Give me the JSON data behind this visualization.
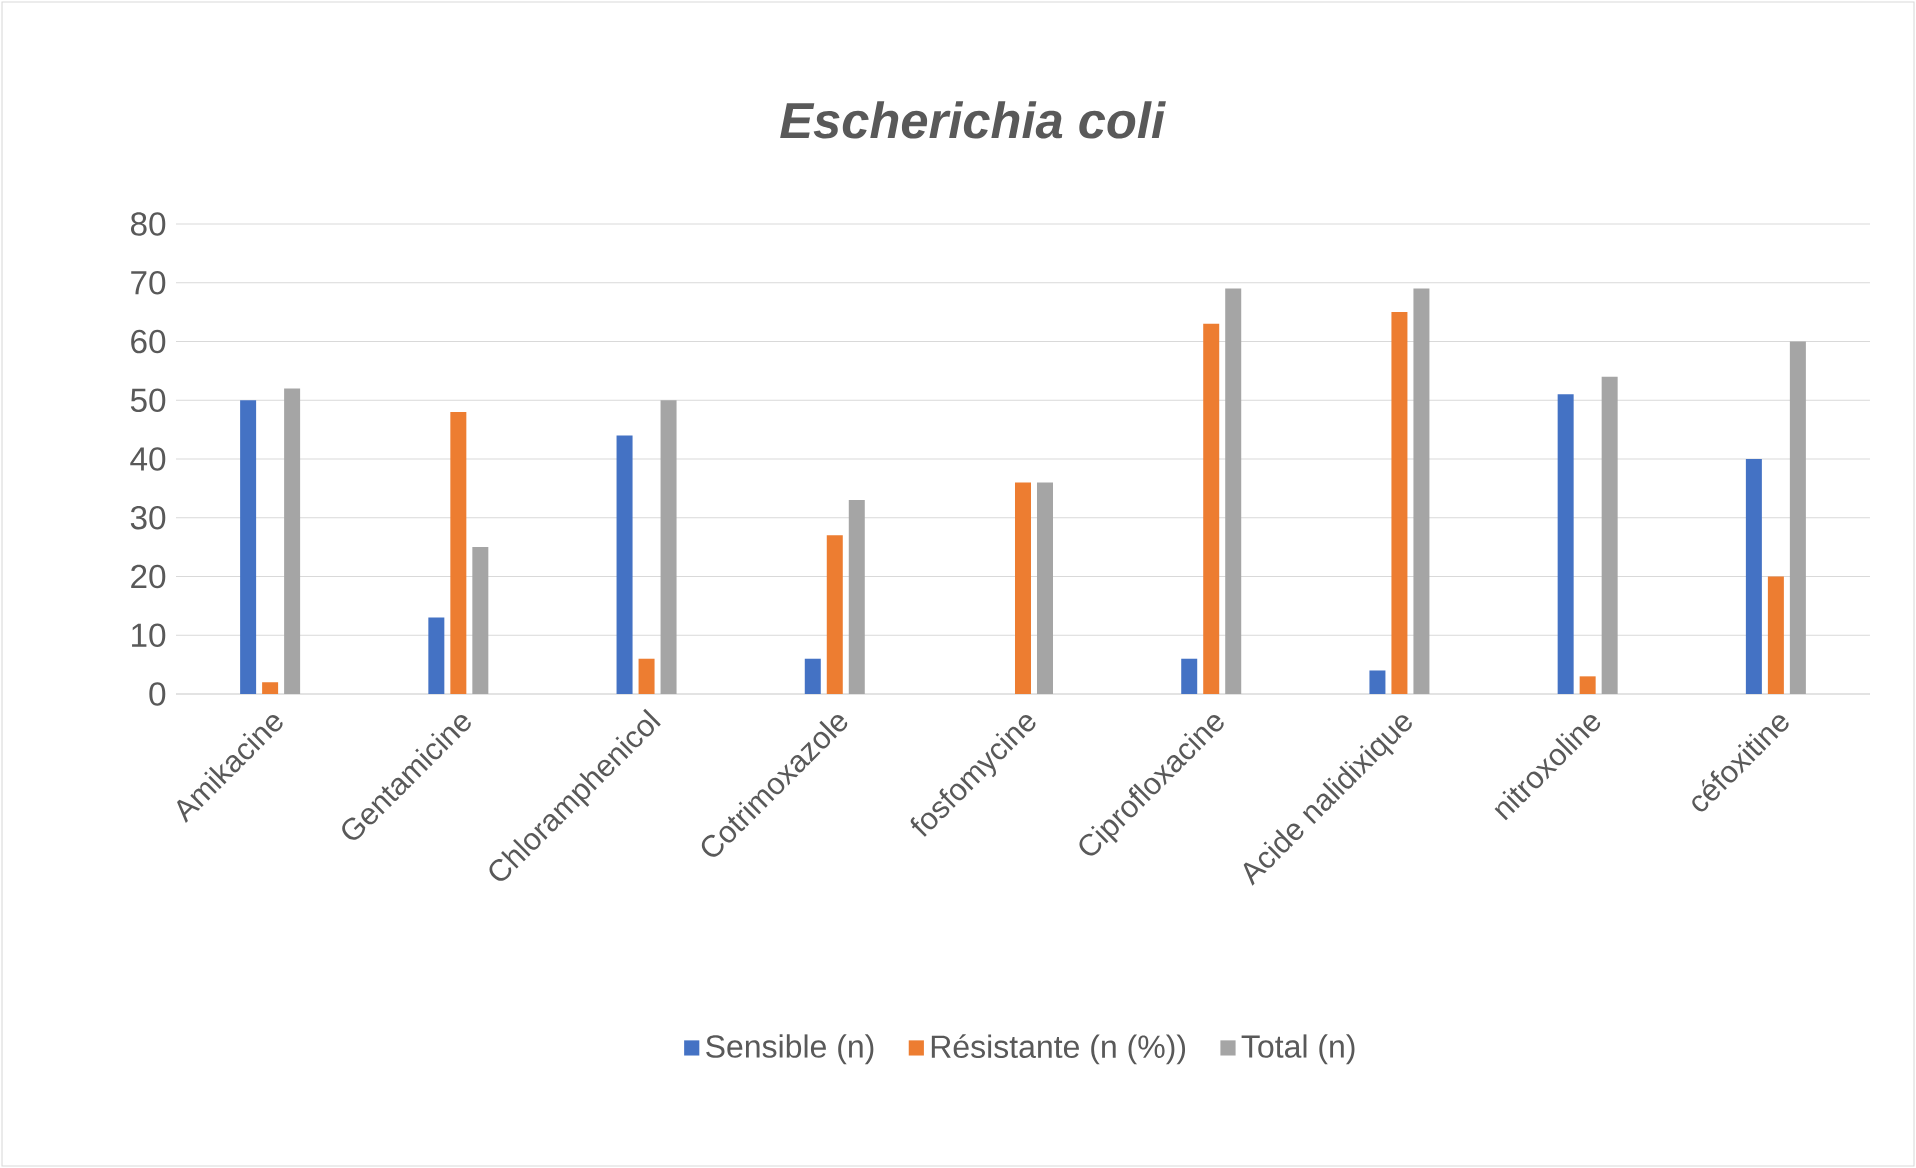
{
  "chart_data": {
    "type": "bar",
    "title": "Escherichia coli",
    "categories": [
      "Amikacine",
      "Gentamicine",
      "Chloramphenicol",
      "Cotrimoxazole",
      "fosfomycine",
      "Ciprofloxacine",
      "Acide nalidixique",
      "nitroxoline",
      "céfoxitine"
    ],
    "series": [
      {
        "name": "Sensible (n)",
        "color": "#4472c4",
        "values": [
          50,
          13,
          44,
          6,
          0,
          6,
          4,
          51,
          40
        ]
      },
      {
        "name": "Résistante (n (%))",
        "color": "#ed7d31",
        "values": [
          2,
          48,
          6,
          27,
          36,
          63,
          65,
          3,
          20
        ]
      },
      {
        "name": "Total (n)",
        "color": "#a5a5a5",
        "values": [
          52,
          25,
          50,
          33,
          36,
          69,
          69,
          54,
          60
        ]
      }
    ],
    "ylim": [
      0,
      80
    ],
    "yticks": [
      0,
      10,
      20,
      30,
      40,
      50,
      60,
      70,
      80
    ],
    "grid": "y",
    "legend": "bottom"
  }
}
